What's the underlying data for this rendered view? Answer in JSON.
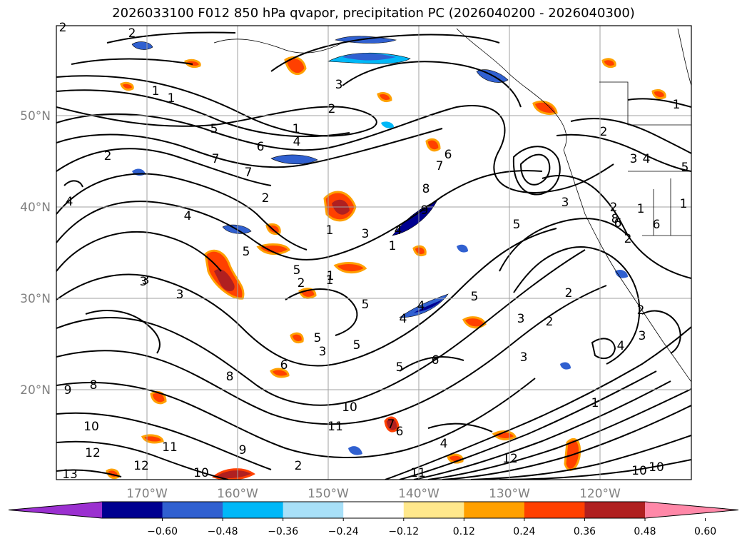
{
  "title": "2026033100 F012 850 hPa qvapor, precipitation PC (2026040200 - 2026040300)",
  "map": {
    "lat_labels": [
      "50°N",
      "40°N",
      "30°N",
      "20°N"
    ],
    "lon_labels": [
      "170°W",
      "160°W",
      "150°W",
      "140°W",
      "130°W",
      "120°W"
    ],
    "contour_labels": [
      "2",
      "2",
      "1",
      "1",
      "2",
      "1",
      "4",
      "5",
      "6",
      "7",
      "7",
      "2",
      "3",
      "2",
      "4",
      "4",
      "1",
      "3",
      "4",
      "1",
      "5",
      "5",
      "3",
      "3",
      "2",
      "1",
      "5",
      "5",
      "5",
      "4",
      "3",
      "5",
      "6",
      "8",
      "8",
      "9",
      "9",
      "10",
      "10",
      "11",
      "11",
      "12",
      "12",
      "13",
      "10",
      "4",
      "6",
      "7",
      "11",
      "2",
      "3",
      "2",
      "3",
      "1",
      "4",
      "3",
      "12",
      "10",
      "6",
      "5",
      "4",
      "3",
      "2",
      "1",
      "6",
      "7",
      "8",
      "9",
      "3",
      "2",
      "1",
      "1",
      "2",
      "3",
      "4",
      "5",
      "6",
      "1",
      "2",
      "8",
      "6",
      "5",
      "2",
      "10"
    ]
  },
  "colorbar": {
    "ticks": [
      "−0.60",
      "−0.48",
      "−0.36",
      "−0.24",
      "−0.12",
      "0.12",
      "0.24",
      "0.36",
      "0.48",
      "0.60"
    ],
    "colors": [
      "#9b30d0",
      "#000090",
      "#3060d0",
      "#00b8f8",
      "#a8e0f8",
      "#ffffff",
      "#ffe88c",
      "#ffa000",
      "#ff4000",
      "#b02020",
      "#ff88a8"
    ]
  },
  "colors": {
    "contour": "#000000",
    "grid": "#a0a0a0",
    "coast": "#000000",
    "axis_label": "#808080"
  }
}
